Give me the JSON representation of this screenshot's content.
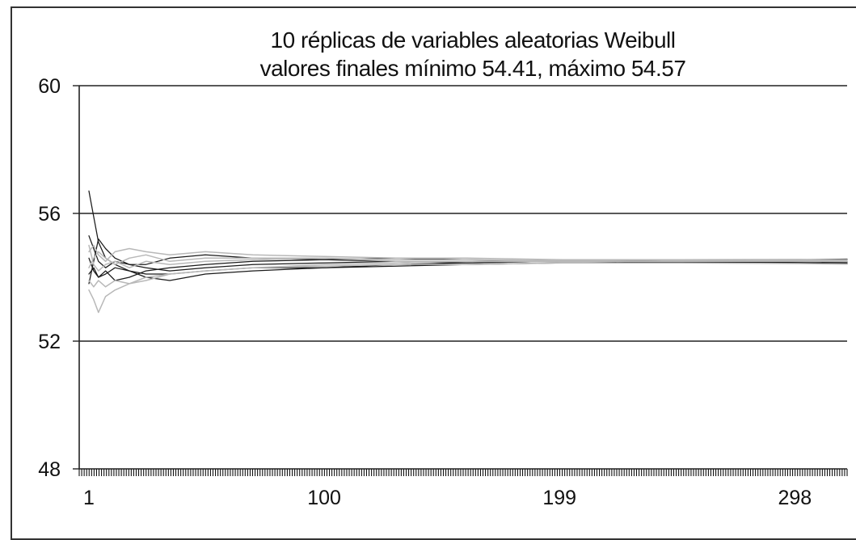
{
  "chart_data": {
    "type": "line",
    "title_lines": [
      "10 réplicas de variables aleatorias Weibull",
      "valores finales mínimo 54.41, máximo 54.57"
    ],
    "xlabel": "",
    "ylabel": "",
    "xlim": [
      1,
      320
    ],
    "ylim": [
      48,
      60
    ],
    "yticks": [
      60,
      56,
      52,
      48
    ],
    "xticks": [
      {
        "value": 1,
        "label": "1"
      },
      {
        "value": 100,
        "label": "100"
      },
      {
        "value": 199,
        "label": "199"
      },
      {
        "value": 298,
        "label": "298"
      }
    ],
    "grid": "horizontal lines at 52, 56 and 60",
    "legend": "none",
    "colors": {
      "dark_series": "#1a1a1a",
      "light_series": "#b8b8b8",
      "grid": "#222222"
    },
    "series": [
      {
        "color": "#1a1a1a",
        "values": [
          [
            1,
            56.7
          ],
          [
            3,
            55.9
          ],
          [
            5,
            55.1
          ],
          [
            8,
            54.6
          ],
          [
            12,
            54.4
          ],
          [
            18,
            54.2
          ],
          [
            25,
            54.1
          ],
          [
            35,
            54.1
          ],
          [
            50,
            54.2
          ],
          [
            70,
            54.3
          ],
          [
            100,
            54.3
          ],
          [
            130,
            54.4
          ],
          [
            160,
            54.45
          ],
          [
            200,
            54.5
          ],
          [
            250,
            54.48
          ],
          [
            300,
            54.45
          ],
          [
            320,
            54.43
          ]
        ]
      },
      {
        "color": "#1a1a1a",
        "values": [
          [
            1,
            53.8
          ],
          [
            3,
            54.5
          ],
          [
            5,
            55.2
          ],
          [
            8,
            54.9
          ],
          [
            12,
            54.6
          ],
          [
            18,
            54.4
          ],
          [
            25,
            54.3
          ],
          [
            35,
            54.2
          ],
          [
            50,
            54.3
          ],
          [
            70,
            54.4
          ],
          [
            100,
            54.45
          ],
          [
            130,
            54.5
          ],
          [
            160,
            54.5
          ],
          [
            200,
            54.5
          ],
          [
            250,
            54.47
          ],
          [
            300,
            54.44
          ],
          [
            320,
            54.42
          ]
        ]
      },
      {
        "color": "#1a1a1a",
        "values": [
          [
            1,
            54.1
          ],
          [
            3,
            54.3
          ],
          [
            5,
            54.0
          ],
          [
            8,
            54.2
          ],
          [
            12,
            53.9
          ],
          [
            18,
            54.0
          ],
          [
            25,
            54.2
          ],
          [
            35,
            54.3
          ],
          [
            50,
            54.4
          ],
          [
            70,
            54.5
          ],
          [
            100,
            54.55
          ],
          [
            130,
            54.5
          ],
          [
            160,
            54.45
          ],
          [
            200,
            54.5
          ],
          [
            250,
            54.5
          ],
          [
            300,
            54.48
          ],
          [
            320,
            54.46
          ]
        ]
      },
      {
        "color": "#1a1a1a",
        "values": [
          [
            1,
            54.6
          ],
          [
            3,
            54.2
          ],
          [
            5,
            54.0
          ],
          [
            8,
            54.1
          ],
          [
            12,
            54.3
          ],
          [
            18,
            54.2
          ],
          [
            25,
            54.0
          ],
          [
            35,
            53.9
          ],
          [
            50,
            54.1
          ],
          [
            70,
            54.2
          ],
          [
            100,
            54.3
          ],
          [
            130,
            54.35
          ],
          [
            160,
            54.4
          ],
          [
            200,
            54.45
          ],
          [
            250,
            54.47
          ],
          [
            300,
            54.5
          ],
          [
            320,
            54.5
          ]
        ]
      },
      {
        "color": "#1a1a1a",
        "values": [
          [
            1,
            55.3
          ],
          [
            3,
            54.9
          ],
          [
            5,
            54.5
          ],
          [
            8,
            54.3
          ],
          [
            12,
            54.5
          ],
          [
            18,
            54.4
          ],
          [
            25,
            54.4
          ],
          [
            35,
            54.6
          ],
          [
            50,
            54.7
          ],
          [
            70,
            54.6
          ],
          [
            100,
            54.55
          ],
          [
            130,
            54.6
          ],
          [
            160,
            54.55
          ],
          [
            200,
            54.5
          ],
          [
            250,
            54.52
          ],
          [
            300,
            54.55
          ],
          [
            320,
            54.57
          ]
        ]
      },
      {
        "color": "#b8b8b8",
        "values": [
          [
            1,
            53.6
          ],
          [
            3,
            53.3
          ],
          [
            5,
            52.9
          ],
          [
            8,
            53.4
          ],
          [
            12,
            53.6
          ],
          [
            18,
            53.8
          ],
          [
            25,
            53.9
          ],
          [
            35,
            54.1
          ],
          [
            50,
            54.2
          ],
          [
            70,
            54.3
          ],
          [
            100,
            54.35
          ],
          [
            130,
            54.4
          ],
          [
            160,
            54.4
          ],
          [
            200,
            54.45
          ],
          [
            250,
            54.45
          ],
          [
            300,
            54.43
          ],
          [
            320,
            54.41
          ]
        ]
      },
      {
        "color": "#b8b8b8",
        "values": [
          [
            1,
            54.8
          ],
          [
            3,
            55.0
          ],
          [
            5,
            54.7
          ],
          [
            8,
            54.5
          ],
          [
            12,
            54.8
          ],
          [
            18,
            54.9
          ],
          [
            25,
            54.8
          ],
          [
            35,
            54.7
          ],
          [
            50,
            54.8
          ],
          [
            70,
            54.7
          ],
          [
            100,
            54.65
          ],
          [
            130,
            54.6
          ],
          [
            160,
            54.6
          ],
          [
            200,
            54.55
          ],
          [
            250,
            54.55
          ],
          [
            300,
            54.56
          ],
          [
            320,
            54.55
          ]
        ]
      },
      {
        "color": "#b8b8b8",
        "values": [
          [
            1,
            53.9
          ],
          [
            3,
            53.7
          ],
          [
            5,
            53.9
          ],
          [
            8,
            53.7
          ],
          [
            12,
            53.9
          ],
          [
            18,
            53.8
          ],
          [
            25,
            54.0
          ],
          [
            35,
            54.1
          ],
          [
            50,
            54.2
          ],
          [
            70,
            54.3
          ],
          [
            100,
            54.4
          ],
          [
            130,
            54.45
          ],
          [
            160,
            54.5
          ],
          [
            200,
            54.5
          ],
          [
            250,
            54.5
          ],
          [
            300,
            54.5
          ],
          [
            320,
            54.5
          ]
        ]
      },
      {
        "color": "#b8b8b8",
        "values": [
          [
            1,
            54.3
          ],
          [
            3,
            54.6
          ],
          [
            5,
            54.8
          ],
          [
            8,
            54.6
          ],
          [
            12,
            54.4
          ],
          [
            18,
            54.6
          ],
          [
            25,
            54.7
          ],
          [
            35,
            54.5
          ],
          [
            50,
            54.6
          ],
          [
            70,
            54.6
          ],
          [
            100,
            54.6
          ],
          [
            130,
            54.55
          ],
          [
            160,
            54.55
          ],
          [
            200,
            54.52
          ],
          [
            250,
            54.5
          ],
          [
            300,
            54.5
          ],
          [
            320,
            54.49
          ]
        ]
      },
      {
        "color": "#b8b8b8",
        "values": [
          [
            1,
            55.0
          ],
          [
            3,
            54.4
          ],
          [
            5,
            54.2
          ],
          [
            8,
            54.4
          ],
          [
            12,
            54.5
          ],
          [
            18,
            54.3
          ],
          [
            25,
            54.5
          ],
          [
            35,
            54.4
          ],
          [
            50,
            54.5
          ],
          [
            70,
            54.55
          ],
          [
            100,
            54.6
          ],
          [
            130,
            54.5
          ],
          [
            160,
            54.5
          ],
          [
            200,
            54.48
          ],
          [
            250,
            54.52
          ],
          [
            300,
            54.53
          ],
          [
            320,
            54.54
          ]
        ]
      }
    ]
  }
}
